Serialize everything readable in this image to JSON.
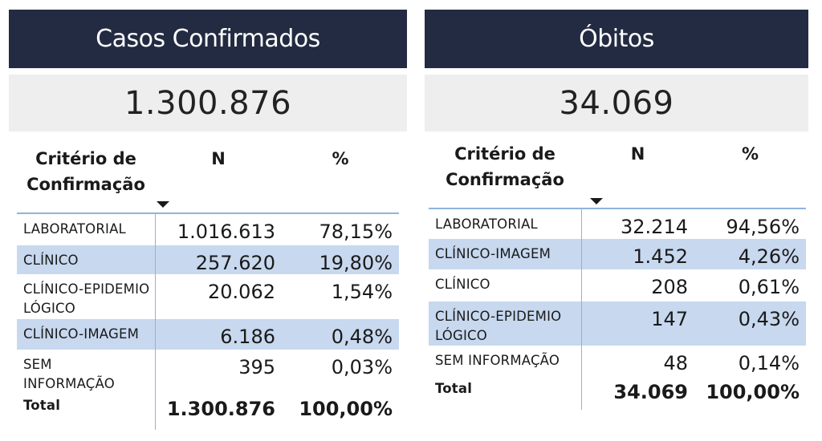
{
  "left": {
    "title": "Casos Confirmados",
    "total_value": "1.300.876",
    "headers": {
      "criterio": "Critério de Confirmação",
      "n": "N",
      "pct": "%"
    },
    "rows": [
      {
        "label": "LABORATORIAL",
        "n": "1.016.613",
        "pct": "78,15%",
        "highlight": false
      },
      {
        "label": "CLÍNICO",
        "n": "257.620",
        "pct": "19,80%",
        "highlight": true
      },
      {
        "label": "CLÍNICO-EPIDEMIOLÓGICO",
        "n": "20.062",
        "pct": "1,54%",
        "highlight": false
      },
      {
        "label": "CLÍNICO-IMAGEM",
        "n": "6.186",
        "pct": "0,48%",
        "highlight": true
      },
      {
        "label": "SEM INFORMAÇÃO",
        "n": "395",
        "pct": "0,03%",
        "highlight": false
      }
    ],
    "total_row": {
      "label": "Total",
      "n": "1.300.876",
      "pct": "100,00%"
    }
  },
  "right": {
    "title": "Óbitos",
    "total_value": "34.069",
    "headers": {
      "criterio": "Critério de Confirmação",
      "n": "N",
      "pct": "%"
    },
    "rows": [
      {
        "label": "LABORATORIAL",
        "n": "32.214",
        "pct": "94,56%",
        "highlight": false
      },
      {
        "label": "CLÍNICO-IMAGEM",
        "n": "1.452",
        "pct": "4,26%",
        "highlight": true
      },
      {
        "label": "CLÍNICO",
        "n": "208",
        "pct": "0,61%",
        "highlight": false
      },
      {
        "label": "CLÍNICO-EPIDEMIOLÓGICO",
        "n": "147",
        "pct": "0,43%",
        "highlight": true
      },
      {
        "label": "SEM INFORMAÇÃO",
        "n": "48",
        "pct": "0,14%",
        "highlight": false
      }
    ],
    "total_row": {
      "label": "Total",
      "n": "34.069",
      "pct": "100,00%"
    }
  }
}
